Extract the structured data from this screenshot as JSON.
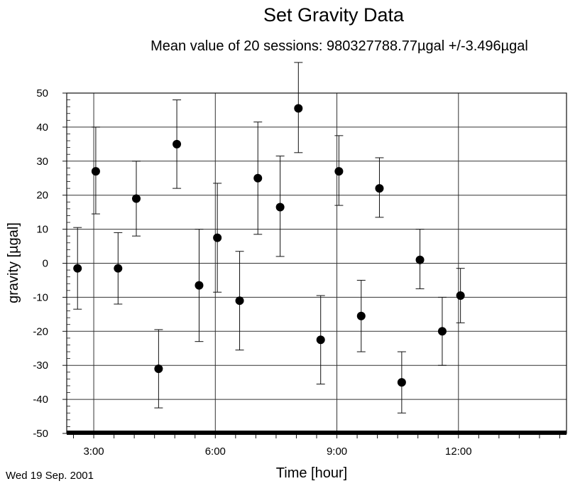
{
  "chart_data": {
    "type": "scatter",
    "title": "Set Gravity Data",
    "subtitle": "Mean value of 20 sessions: 980327788.77µgal +/-3.496µgal",
    "xlabel": "Time [hour]",
    "ylabel": "gravity [µgal]",
    "date_label": "Wed 19 Sep. 2001",
    "xlim": [
      "02:20",
      "14:40"
    ],
    "ylim": [
      -50,
      50
    ],
    "x_ticks": [
      "3:00",
      "6:00",
      "9:00",
      "12:00"
    ],
    "y_ticks": [
      "50",
      "40",
      "30",
      "20",
      "10",
      "0",
      "-10",
      "-20",
      "-30",
      "-40",
      "-50"
    ],
    "grid": true,
    "points": [
      {
        "time": "02:36",
        "value": -1.5,
        "error_low": -13.5,
        "error_high": 10.5
      },
      {
        "time": "03:03",
        "value": 27.0,
        "error_low": 14.5,
        "error_high": 40.0
      },
      {
        "time": "03:36",
        "value": -1.5,
        "error_low": -12.0,
        "error_high": 9.0
      },
      {
        "time": "04:03",
        "value": 19.0,
        "error_low": 8.0,
        "error_high": 30.0
      },
      {
        "time": "04:36",
        "value": -31.0,
        "error_low": -42.5,
        "error_high": -19.5
      },
      {
        "time": "05:03",
        "value": 35.0,
        "error_low": 22.0,
        "error_high": 48.0
      },
      {
        "time": "05:36",
        "value": -6.5,
        "error_low": -23.0,
        "error_high": 10.0
      },
      {
        "time": "06:03",
        "value": 7.5,
        "error_low": -8.5,
        "error_high": 23.5
      },
      {
        "time": "06:36",
        "value": -11.0,
        "error_low": -25.5,
        "error_high": 3.5
      },
      {
        "time": "07:03",
        "value": 25.0,
        "error_low": 8.5,
        "error_high": 41.5
      },
      {
        "time": "07:36",
        "value": 16.5,
        "error_low": 2.0,
        "error_high": 31.5
      },
      {
        "time": "08:03",
        "value": 45.5,
        "error_low": 32.5,
        "error_high": 59.0
      },
      {
        "time": "08:36",
        "value": -22.5,
        "error_low": -35.5,
        "error_high": -9.5
      },
      {
        "time": "09:03",
        "value": 27.0,
        "error_low": 17.0,
        "error_high": 37.5
      },
      {
        "time": "09:36",
        "value": -15.5,
        "error_low": -26.0,
        "error_high": -5.0
      },
      {
        "time": "10:03",
        "value": 22.0,
        "error_low": 13.5,
        "error_high": 31.0
      },
      {
        "time": "10:36",
        "value": -35.0,
        "error_low": -44.0,
        "error_high": -26.0
      },
      {
        "time": "11:03",
        "value": 1.0,
        "error_low": -7.5,
        "error_high": 10.0
      },
      {
        "time": "11:36",
        "value": -20.0,
        "error_low": -30.0,
        "error_high": -10.0
      },
      {
        "time": "12:03",
        "value": -9.5,
        "error_low": -17.5,
        "error_high": -1.5
      }
    ]
  }
}
